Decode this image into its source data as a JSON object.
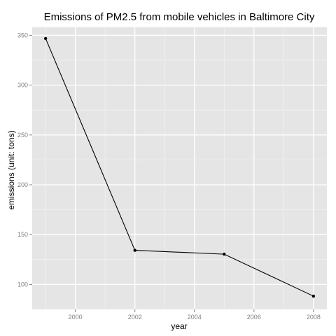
{
  "chart_data": {
    "type": "line",
    "title": "Emissions of PM2.5 from mobile vehicles in Baltimore City",
    "xlabel": "year",
    "ylabel": "emissions (unit: tons)",
    "x": [
      1999,
      2002,
      2005,
      2008
    ],
    "series": [
      {
        "values": [
          346.8,
          134.3,
          130.4,
          88.3
        ]
      }
    ],
    "xlim": [
      1998.55,
      2008.45
    ],
    "ylim": [
      75,
      358
    ],
    "x_ticks": [
      2000,
      2002,
      2004,
      2006,
      2008
    ],
    "x_tick_labels": [
      "2000",
      "2002",
      "2004",
      "2006",
      "2008"
    ],
    "y_ticks": [
      100,
      150,
      200,
      250,
      300,
      350
    ],
    "y_tick_labels": [
      "100",
      "150",
      "200",
      "250",
      "300",
      "350"
    ],
    "x_minor_ticks": [
      1999,
      2001,
      2003,
      2005,
      2007
    ],
    "y_minor_ticks": [
      125,
      175,
      225,
      275,
      325
    ],
    "grid": true,
    "legend": "none",
    "colors": {
      "panel_background": "#e5e5e5",
      "grid_major": "#ffffff",
      "grid_minor": "#f2f2f2",
      "line": "#000000",
      "point": "#000000",
      "tick_label": "#7f7f7f",
      "tick_mark": "#7f7f7f"
    }
  }
}
